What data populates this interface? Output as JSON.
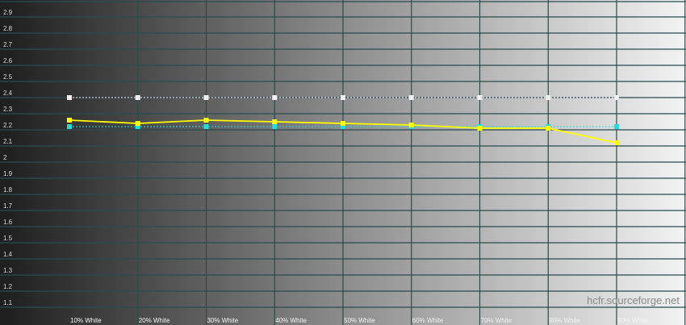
{
  "chart_data": {
    "type": "line",
    "title": "",
    "xlabel": "",
    "ylabel": "",
    "categories": [
      "10% White",
      "20% White",
      "30% White",
      "40% White",
      "50% White",
      "60% White",
      "70% White",
      "80% White",
      "90% White"
    ],
    "ylim": [
      1.0,
      3.0
    ],
    "yticks": [
      "1.1",
      "1.2",
      "1.3",
      "1.4",
      "1.5",
      "1.6",
      "1.7",
      "1.8",
      "1.9",
      "2",
      "2.1",
      "2.2",
      "2.3",
      "2.4",
      "2.5",
      "2.6",
      "2.7",
      "2.8",
      "2.9"
    ],
    "grid": true,
    "series": [
      {
        "color": "#f0f0f0",
        "style": "dotted",
        "values": [
          2.4,
          2.4,
          2.4,
          2.4,
          2.4,
          2.4,
          2.4,
          2.4,
          2.4
        ]
      },
      {
        "color": "#22dddd",
        "style": "dotted",
        "values": [
          2.22,
          2.22,
          2.22,
          2.22,
          2.22,
          2.22,
          2.22,
          2.22,
          2.22
        ]
      },
      {
        "color": "#ffff00",
        "style": "solid",
        "values": [
          2.26,
          2.24,
          2.26,
          2.25,
          2.24,
          2.23,
          2.21,
          2.21,
          2.12
        ]
      }
    ],
    "watermark": "hcfr.sourceforge.net",
    "colors": {
      "grid": "#2d4a48",
      "bg_dark": "#1e1e1e",
      "bg_light": "#f2f2f2"
    }
  }
}
